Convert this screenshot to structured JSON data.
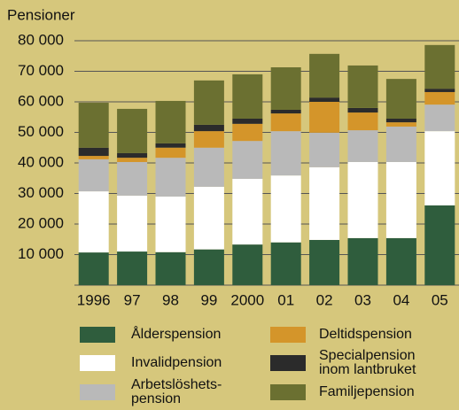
{
  "chart_data": {
    "type": "stacked_bar",
    "y_axis_label": "Pensioner",
    "categories": [
      "1996",
      "97",
      "98",
      "99",
      "2000",
      "01",
      "02",
      "03",
      "04",
      "05"
    ],
    "series": [
      {
        "name": "Ålderspension",
        "color": "#2f5d3d",
        "values": [
          10700,
          11000,
          10800,
          11700,
          13300,
          14000,
          14800,
          15400,
          15400,
          26100
        ]
      },
      {
        "name": "Invalidpension",
        "color": "#ffffff",
        "values": [
          20000,
          18300,
          18200,
          20500,
          21500,
          21900,
          23800,
          24900,
          24900,
          24300
        ]
      },
      {
        "name": "Arbetslöshets-\npension",
        "color": "#b9b9b9",
        "values": [
          10500,
          11000,
          12700,
          12800,
          12400,
          14500,
          11300,
          10400,
          11600,
          8700
        ]
      },
      {
        "name": "Deltidspension",
        "color": "#d4952a",
        "values": [
          1100,
          1400,
          3300,
          5400,
          5600,
          5800,
          10100,
          5800,
          1400,
          4100
        ]
      },
      {
        "name": "Specialpension\ninom lantbruket",
        "color": "#2b2b2b",
        "values": [
          2700,
          1500,
          1400,
          2100,
          1700,
          1200,
          1400,
          1500,
          1200,
          1100
        ]
      },
      {
        "name": "Familjepension",
        "color": "#6b7031",
        "values": [
          14700,
          14500,
          13900,
          14500,
          14500,
          13900,
          14300,
          13900,
          13000,
          14300
        ]
      }
    ],
    "ylim": [
      0,
      80000
    ],
    "yticks": [
      {
        "value": 10000,
        "label": "10 000"
      },
      {
        "value": 20000,
        "label": "20 000"
      },
      {
        "value": 30000,
        "label": "30 000"
      },
      {
        "value": 40000,
        "label": "40 000"
      },
      {
        "value": 50000,
        "label": "50 000"
      },
      {
        "value": 60000,
        "label": "60 000"
      },
      {
        "value": 70000,
        "label": "70 000"
      },
      {
        "value": 80000,
        "label": "80 000"
      }
    ],
    "grid": true
  }
}
